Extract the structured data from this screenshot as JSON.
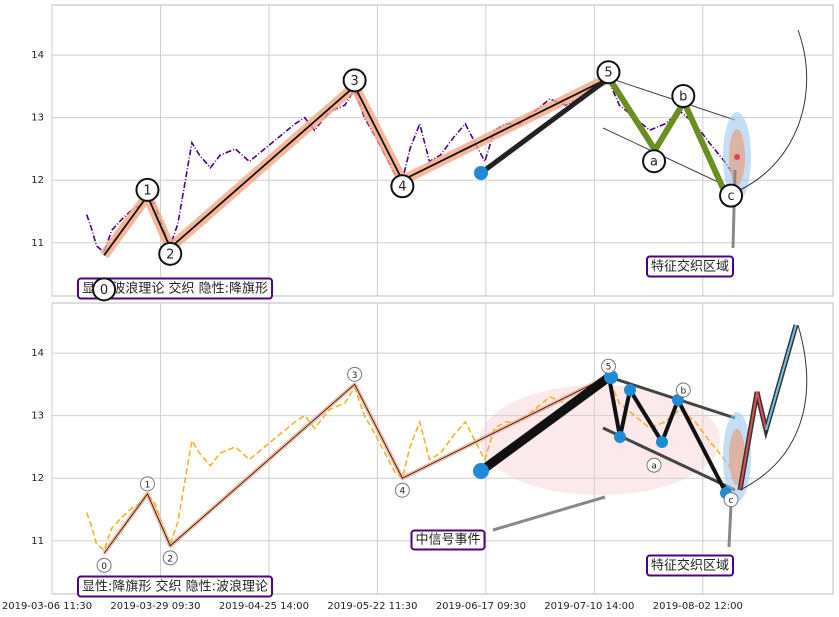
{
  "chart_data": [
    {
      "type": "line",
      "x": [
        32,
        37,
        41,
        48,
        55,
        63,
        72,
        81,
        88,
        95,
        101,
        109,
        116,
        123,
        129,
        136,
        146,
        155,
        169,
        182,
        196,
        210,
        224,
        233,
        242,
        256,
        270,
        279,
        288,
        298,
        307,
        316,
        323,
        330,
        339,
        348,
        358,
        371,
        381,
        390,
        399,
        408,
        418,
        431,
        445,
        459,
        473,
        487,
        500,
        513,
        523,
        537,
        551,
        565,
        579,
        593,
        606,
        620,
        628
      ],
      "series": [
        {
          "color": "#4b0082",
          "values": [
            11.45,
            11.2,
            10.95,
            10.85,
            11.2,
            11.35,
            11.5,
            11.6,
            11.75,
            11.6,
            11.3,
            10.95,
            11.3,
            12.0,
            12.6,
            12.4,
            12.2,
            12.4,
            12.5,
            12.3,
            12.5,
            12.7,
            12.9,
            13.0,
            12.8,
            13.1,
            13.2,
            13.45,
            13.0,
            12.7,
            12.4,
            12.1,
            12.0,
            12.5,
            12.9,
            12.3,
            12.4,
            12.7,
            12.9,
            12.6,
            12.3,
            12.8,
            12.9,
            12.9,
            13.1,
            13.3,
            13.2,
            13.3,
            13.5,
            13.6,
            13.2,
            13.0,
            12.8,
            12.9,
            13.1,
            12.9,
            12.6,
            12.3,
            12.1
          ]
        }
      ],
      "waves": {
        "x": [
          48,
          88,
          109,
          279,
          323,
          513,
          555,
          582,
          626
        ],
        "values": [
          10.8,
          11.75,
          10.92,
          13.5,
          12.0,
          13.63,
          12.4,
          13.25,
          11.85
        ],
        "labels": [
          "0",
          "1",
          "2",
          "3",
          "4",
          "5",
          "a",
          "b",
          "c"
        ]
      },
      "annotations": [
        "显性:波浪理论 交织 隐性:降旗形",
        "特征交织区域"
      ],
      "xlim": [
        0,
        720
      ],
      "ylim": [
        10.15,
        14.8
      ],
      "yticks": [
        11,
        12,
        13,
        14
      ],
      "grid": true
    },
    {
      "type": "line",
      "x": [
        32,
        37,
        41,
        48,
        55,
        63,
        72,
        81,
        88,
        95,
        101,
        109,
        116,
        123,
        129,
        136,
        146,
        155,
        169,
        182,
        196,
        210,
        224,
        233,
        242,
        256,
        270,
        279,
        288,
        298,
        307,
        316,
        323,
        330,
        339,
        348,
        358,
        371,
        381,
        390,
        399,
        408,
        418,
        431,
        445,
        459,
        473,
        487,
        500,
        513,
        523,
        537,
        551,
        565,
        579,
        593,
        606,
        620,
        628
      ],
      "series": [
        {
          "color": "#f0b429",
          "values": [
            11.45,
            11.2,
            10.95,
            10.85,
            11.2,
            11.35,
            11.5,
            11.6,
            11.75,
            11.6,
            11.3,
            10.95,
            11.3,
            12.0,
            12.6,
            12.4,
            12.2,
            12.4,
            12.5,
            12.3,
            12.5,
            12.7,
            12.9,
            13.0,
            12.8,
            13.1,
            13.2,
            13.45,
            13.0,
            12.7,
            12.4,
            12.1,
            12.0,
            12.5,
            12.9,
            12.3,
            12.4,
            12.7,
            12.9,
            12.6,
            12.3,
            12.8,
            12.9,
            12.9,
            13.1,
            13.3,
            13.2,
            13.3,
            13.5,
            13.6,
            13.2,
            13.0,
            12.8,
            12.9,
            13.1,
            12.9,
            12.6,
            12.3,
            12.1
          ]
        }
      ],
      "waves": {
        "x": [
          48,
          88,
          109,
          279,
          323,
          513,
          555,
          582,
          626
        ],
        "values": [
          10.8,
          11.75,
          10.92,
          13.5,
          12.0,
          13.63,
          12.4,
          13.25,
          11.85
        ],
        "labels": [
          "0",
          "1",
          "2",
          "3",
          "4",
          "5",
          "a",
          "b",
          "c"
        ]
      },
      "annotations": [
        "显性:降旗形 交织 隐性:波浪理论",
        "中信号事件",
        "特征交织区域"
      ],
      "xlim": [
        0,
        720
      ],
      "ylim": [
        10.15,
        14.8
      ],
      "yticks": [
        11,
        12,
        13,
        14
      ],
      "grid": true,
      "xticks": [
        {
          "value": 0,
          "label": "2019-03-06 11:30"
        },
        {
          "value": 100,
          "label": "2019-03-29 09:30"
        },
        {
          "value": 200,
          "label": "2019-04-25 14:00"
        },
        {
          "value": 300,
          "label": "2019-05-22 11:30"
        },
        {
          "value": 400,
          "label": "2019-06-17 09:30"
        },
        {
          "value": 500,
          "label": "2019-07-10 14:00"
        },
        {
          "value": 600,
          "label": "2019-08-02 12:00"
        }
      ]
    }
  ]
}
